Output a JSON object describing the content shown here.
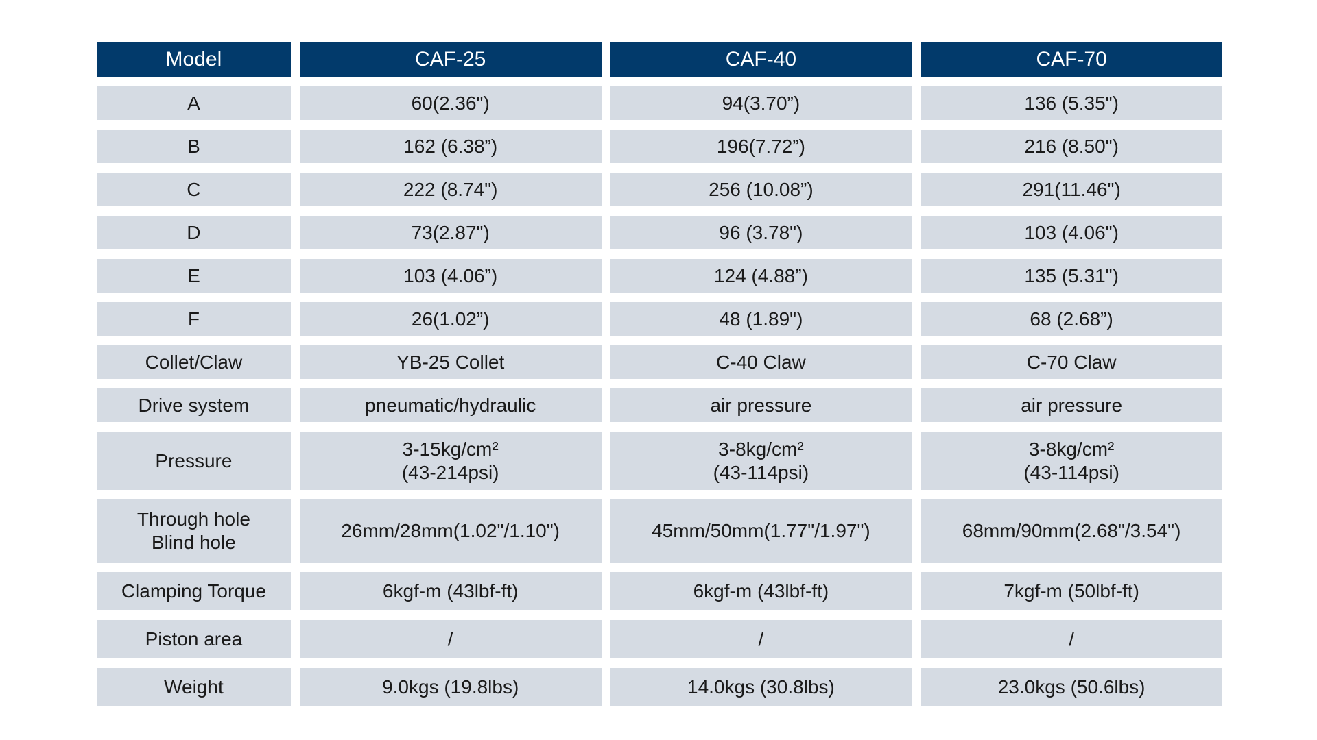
{
  "table": {
    "header": [
      "Model",
      "CAF-25",
      "CAF-40",
      "CAF-70"
    ],
    "rows": [
      {
        "label": "A",
        "values": [
          "60(2.36\")",
          "94(3.70”)",
          "136 (5.35\")"
        ]
      },
      {
        "label": "B",
        "values": [
          "162 (6.38”)",
          "196(7.72”)",
          "216 (8.50\")"
        ]
      },
      {
        "label": "C",
        "values": [
          "222 (8.74\")",
          "256 (10.08”)",
          "291(11.46\")"
        ]
      },
      {
        "label": "D",
        "values": [
          "73(2.87\")",
          "96 (3.78\")",
          "103 (4.06\")"
        ]
      },
      {
        "label": "E",
        "values": [
          "103 (4.06”)",
          "124 (4.88”)",
          "135 (5.31\")"
        ]
      },
      {
        "label": "F",
        "values": [
          "26(1.02”)",
          "48 (1.89\")",
          "68 (2.68”)"
        ]
      },
      {
        "label": "Collet/Claw",
        "values": [
          "YB-25 Collet",
          "C-40 Claw",
          "C-70 Claw"
        ]
      },
      {
        "label": "Drive system",
        "values": [
          "pneumatic/hydraulic",
          "air pressure",
          "air pressure"
        ]
      },
      {
        "label": "Pressure",
        "values": [
          "3-15kg/cm²\n(43-214psi)",
          "3-8kg/cm²\n(43-114psi)",
          "3-8kg/cm²\n(43-114psi)"
        ]
      },
      {
        "label": "Through hole\nBlind hole",
        "values": [
          "26mm/28mm(1.02\"/1.10\")",
          "45mm/50mm(1.77\"/1.97\")",
          "68mm/90mm(2.68\"/3.54\")"
        ]
      },
      {
        "label": "Clamping Torque",
        "values": [
          "6kgf-m (43lbf-ft)",
          "6kgf-m (43lbf-ft)",
          "7kgf-m (50lbf-ft)"
        ]
      },
      {
        "label": "Piston area",
        "values": [
          "/",
          "/",
          "/"
        ]
      },
      {
        "label": "Weight",
        "values": [
          "9.0kgs (19.8lbs)",
          "14.0kgs (30.8lbs)",
          "23.0kgs (50.6lbs)"
        ]
      }
    ]
  },
  "colors": {
    "header_bg": "#023a6b",
    "cell_bg": "#d5dbe3",
    "header_text": "#ffffff",
    "cell_text": "#1a1a1a"
  }
}
